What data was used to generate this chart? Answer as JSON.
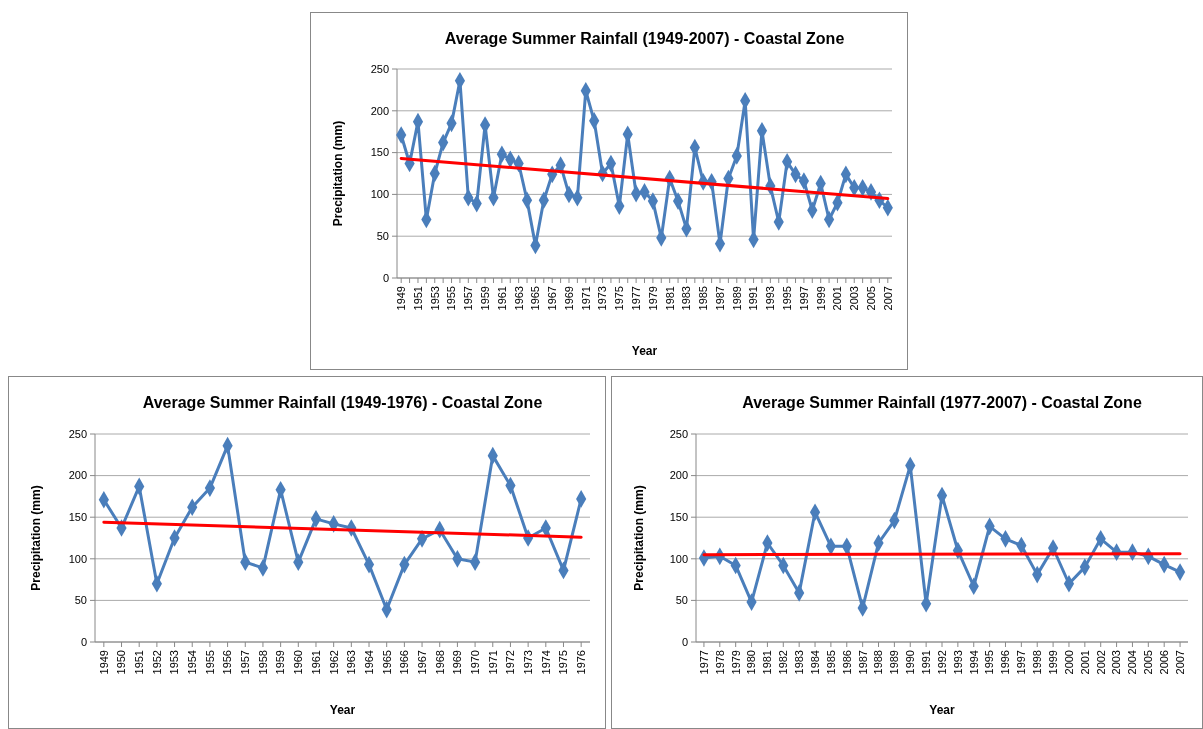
{
  "chart_data": [
    {
      "type": "line",
      "title": "Average Summer Rainfall (1949-2007)  - Coastal Zone",
      "xlabel": "Year",
      "ylabel": "Precipitation (mm)",
      "x": [
        1949,
        1950,
        1951,
        1952,
        1953,
        1954,
        1955,
        1956,
        1957,
        1958,
        1959,
        1960,
        1961,
        1962,
        1963,
        1964,
        1965,
        1966,
        1967,
        1968,
        1969,
        1970,
        1971,
        1972,
        1973,
        1974,
        1975,
        1976,
        1977,
        1978,
        1979,
        1980,
        1981,
        1982,
        1983,
        1984,
        1985,
        1986,
        1987,
        1988,
        1989,
        1990,
        1991,
        1992,
        1993,
        1994,
        1995,
        1996,
        1997,
        1998,
        1999,
        2000,
        2001,
        2002,
        2003,
        2004,
        2005,
        2006,
        2007
      ],
      "xlim": [
        1948.5,
        2007.5
      ],
      "xticks": [
        1949,
        {
          "value": 1950,
          "label": null
        },
        1951,
        {
          "value": 1952,
          "label": null
        },
        1953,
        {
          "value": 1954,
          "label": null
        },
        1955,
        {
          "value": 1956,
          "label": null
        },
        1957,
        {
          "value": 1958,
          "label": null
        },
        1959,
        {
          "value": 1960,
          "label": null
        },
        1961,
        {
          "value": 1962,
          "label": null
        },
        1963,
        {
          "value": 1964,
          "label": null
        },
        1965,
        {
          "value": 1966,
          "label": null
        },
        1967,
        {
          "value": 1968,
          "label": null
        },
        1969,
        {
          "value": 1970,
          "label": null
        },
        1971,
        {
          "value": 1972,
          "label": null
        },
        1973,
        {
          "value": 1974,
          "label": null
        },
        1975,
        {
          "value": 1976,
          "label": null
        },
        1977,
        {
          "value": 1978,
          "label": null
        },
        1979,
        {
          "value": 1980,
          "label": null
        },
        1981,
        {
          "value": 1982,
          "label": null
        },
        1983,
        {
          "value": 1984,
          "label": null
        },
        1985,
        {
          "value": 1986,
          "label": null
        },
        1987,
        {
          "value": 1988,
          "label": null
        },
        1989,
        {
          "value": 1990,
          "label": null
        },
        1991,
        {
          "value": 1992,
          "label": null
        },
        1993,
        {
          "value": 1994,
          "label": null
        },
        1995,
        {
          "value": 1996,
          "label": null
        },
        1997,
        {
          "value": 1998,
          "label": null
        },
        1999,
        {
          "value": 2000,
          "label": null
        },
        2001,
        {
          "value": 2002,
          "label": null
        },
        2003,
        {
          "value": 2004,
          "label": null
        },
        2005,
        {
          "value": 2006,
          "label": null
        },
        2007
      ],
      "series": [
        {
          "color": "#4a7ebb",
          "marker": "diamond",
          "values": [
            171,
            137,
            187,
            70,
            125,
            162,
            185,
            236,
            96,
            89,
            183,
            96,
            148,
            142,
            137,
            93,
            39,
            93,
            124,
            135,
            100,
            96,
            224,
            188,
            125,
            137,
            86,
            172,
            101,
            103,
            92,
            48,
            119,
            92,
            59,
            156,
            115,
            115,
            41,
            119,
            146,
            212,
            46,
            176,
            110,
            67,
            139,
            124,
            116,
            81,
            113,
            70,
            90,
            124,
            108,
            108,
            103,
            93,
            84
          ]
        },
        {
          "type": "line",
          "color": "#ff0000",
          "marker": "none",
          "x": [
            1949,
            2007
          ],
          "values": [
            143,
            95
          ]
        }
      ],
      "ylim": [
        0,
        250
      ],
      "yticks": [
        0,
        50,
        100,
        150,
        200,
        250
      ],
      "grid": "y"
    },
    {
      "type": "line",
      "title": "Average Summer Rainfall (1949-1976)  - Coastal Zone",
      "xlabel": "Year",
      "ylabel": "Precipitation (mm)",
      "x": [
        1949,
        1950,
        1951,
        1952,
        1953,
        1954,
        1955,
        1956,
        1957,
        1958,
        1959,
        1960,
        1961,
        1962,
        1963,
        1964,
        1965,
        1966,
        1967,
        1968,
        1969,
        1970,
        1971,
        1972,
        1973,
        1974,
        1975,
        1976
      ],
      "xlim": [
        1948.5,
        1976.5
      ],
      "xticks": [
        1949,
        1950,
        1951,
        1952,
        1953,
        1954,
        1955,
        1956,
        1957,
        1958,
        1959,
        1960,
        1961,
        1962,
        1963,
        1964,
        1965,
        1966,
        1967,
        1968,
        1969,
        1970,
        1971,
        1972,
        1973,
        1974,
        1975,
        1976
      ],
      "series": [
        {
          "color": "#4a7ebb",
          "marker": "diamond",
          "values": [
            171,
            137,
            187,
            70,
            125,
            162,
            185,
            236,
            96,
            89,
            183,
            96,
            148,
            142,
            137,
            93,
            39,
            93,
            124,
            135,
            100,
            96,
            224,
            188,
            125,
            137,
            86,
            172
          ]
        },
        {
          "type": "line",
          "color": "#ff0000",
          "marker": "none",
          "x": [
            1949,
            1976
          ],
          "values": [
            144,
            126
          ]
        }
      ],
      "ylim": [
        0,
        250
      ],
      "yticks": [
        0,
        50,
        100,
        150,
        200,
        250
      ],
      "grid": "y"
    },
    {
      "type": "line",
      "title": "Average Summer Rainfall (1977-2007)  - Coastal Zone",
      "xlabel": "Year",
      "ylabel": "Precipitation (mm)",
      "x": [
        1977,
        1978,
        1979,
        1980,
        1981,
        1982,
        1983,
        1984,
        1985,
        1986,
        1987,
        1988,
        1989,
        1990,
        1991,
        1992,
        1993,
        1994,
        1995,
        1996,
        1997,
        1998,
        1999,
        2000,
        2001,
        2002,
        2003,
        2004,
        2005,
        2006,
        2007
      ],
      "xlim": [
        1976.5,
        2007.5
      ],
      "xticks": [
        1977,
        1978,
        1979,
        1980,
        1981,
        1982,
        1983,
        1984,
        1985,
        1986,
        1987,
        1988,
        1989,
        1990,
        1991,
        1992,
        1993,
        1994,
        1995,
        1996,
        1997,
        1998,
        1999,
        2000,
        2001,
        2002,
        2003,
        2004,
        2005,
        2006,
        2007
      ],
      "series": [
        {
          "color": "#4a7ebb",
          "marker": "diamond",
          "values": [
            101,
            103,
            92,
            48,
            119,
            92,
            59,
            156,
            115,
            115,
            41,
            119,
            146,
            212,
            46,
            176,
            110,
            67,
            139,
            124,
            116,
            81,
            113,
            70,
            90,
            124,
            108,
            108,
            103,
            93,
            84
          ]
        },
        {
          "type": "line",
          "color": "#ff0000",
          "marker": "none",
          "x": [
            1977,
            2007
          ],
          "values": [
            105,
            106
          ]
        }
      ],
      "ylim": [
        0,
        250
      ],
      "yticks": [
        0,
        50,
        100,
        150,
        200,
        250
      ],
      "grid": "y"
    }
  ]
}
